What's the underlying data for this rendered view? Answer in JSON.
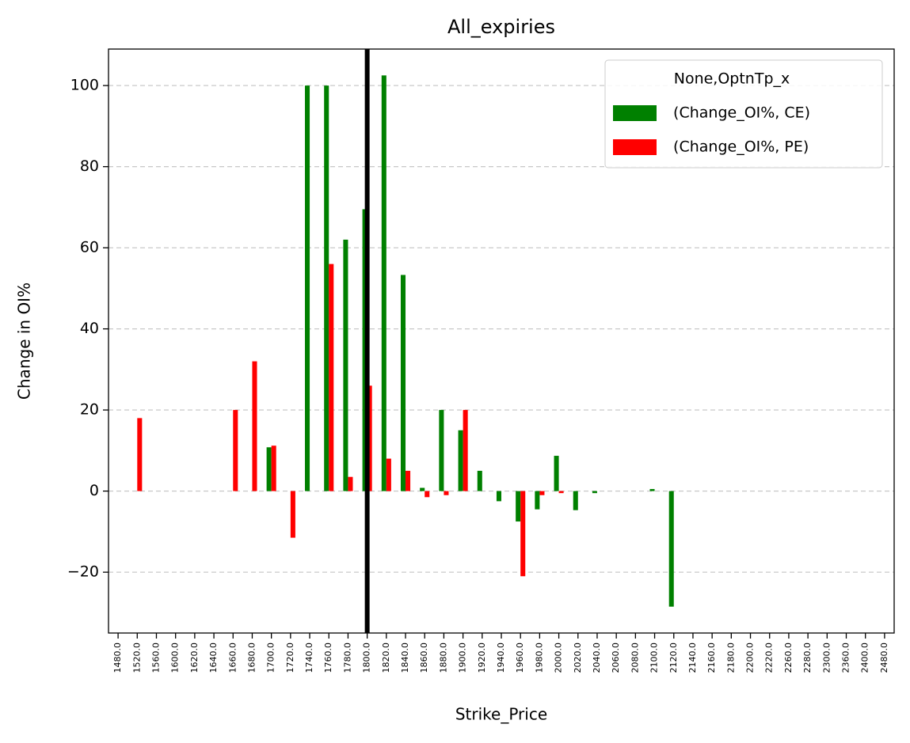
{
  "chart_data": {
    "type": "bar",
    "title": "All_expiries",
    "x_label": "Strike_Price",
    "y_label": "Change in OI%",
    "categories": [
      "1480.0",
      "1520.0",
      "1560.0",
      "1600.0",
      "1620.0",
      "1640.0",
      "1660.0",
      "1680.0",
      "1700.0",
      "1720.0",
      "1740.0",
      "1760.0",
      "1780.0",
      "1800.0",
      "1820.0",
      "1840.0",
      "1860.0",
      "1880.0",
      "1900.0",
      "1920.0",
      "1940.0",
      "1960.0",
      "1980.0",
      "2000.0",
      "2020.0",
      "2040.0",
      "2060.0",
      "2080.0",
      "2100.0",
      "2120.0",
      "2140.0",
      "2160.0",
      "2180.0",
      "2200.0",
      "2220.0",
      "2260.0",
      "2280.0",
      "2300.0",
      "2360.0",
      "2400.0",
      "2480.0"
    ],
    "legend_title": "None,OptnTp_x",
    "series": [
      {
        "name": " (Change_OI%, CE)",
        "color": "#008000",
        "values": [
          0,
          0,
          0,
          0,
          0,
          0,
          0,
          0,
          10.8,
          0,
          100,
          100,
          62,
          69.5,
          102.5,
          53.3,
          0.8,
          20,
          15,
          5,
          -2.5,
          -7.5,
          -4.5,
          8.7,
          -4.7,
          -0.5,
          0,
          0,
          0.5,
          -28.5,
          0,
          0,
          0,
          0,
          0,
          0,
          0,
          0,
          0,
          0,
          0
        ]
      },
      {
        "name": " (Change_OI%, PE)",
        "color": "#ff0000",
        "values": [
          0,
          18,
          0,
          0,
          0,
          0,
          20,
          32,
          11.2,
          -11.5,
          0,
          56,
          3.5,
          26,
          8,
          5,
          -1.5,
          -1,
          20,
          0,
          0,
          -21,
          -1,
          -0.5,
          0,
          0,
          0,
          0,
          0,
          0,
          0,
          0,
          0,
          0,
          0,
          0,
          0,
          0,
          0,
          0,
          0
        ]
      }
    ],
    "ylim": [
      -35,
      109
    ],
    "yticks": [
      {
        "value": -20,
        "label": "−20"
      },
      0,
      20,
      40,
      60,
      80,
      100
    ],
    "grid": true,
    "legend": "upper right",
    "vline": "1800.0"
  }
}
